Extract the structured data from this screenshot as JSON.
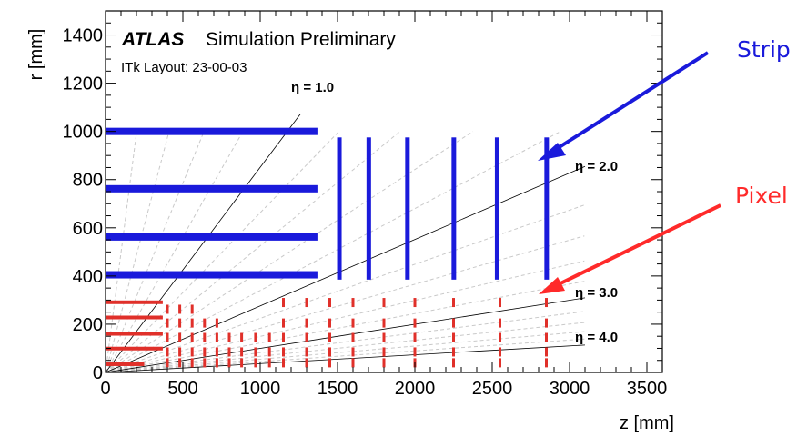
{
  "chart_data": {
    "type": "scatter",
    "title_bold": "ATLAS",
    "title": "Simulation Preliminary",
    "subtitle": "ITk Layout: 23-00-03",
    "xlabel": "z [mm]",
    "ylabel": "r [mm]",
    "xlim": [
      0,
      3600
    ],
    "ylim": [
      0,
      1500
    ],
    "xticks": [
      0,
      500,
      1000,
      1500,
      2000,
      2500,
      3000,
      3500
    ],
    "yticks": [
      0,
      200,
      400,
      600,
      800,
      1000,
      1200,
      1400
    ],
    "eta_lines": [
      {
        "label": "η = 1.0",
        "eta": 1.0,
        "z_end": 1260
      },
      {
        "label": "η = 2.0",
        "eta": 2.0,
        "z_end": 3100
      },
      {
        "label": "η = 3.0",
        "eta": 3.0,
        "z_end": 3100
      },
      {
        "label": "η = 4.0",
        "eta": 4.0,
        "z_end": 3100
      }
    ],
    "strip_barrel": {
      "color": "#1a1adb",
      "z_range": [
        0,
        1370
      ],
      "r": [
        405,
        562,
        762,
        1000
      ]
    },
    "strip_endcap": {
      "color": "#1a1adb",
      "z": [
        1512,
        1702,
        1952,
        2252,
        2532,
        2852
      ],
      "r_range": [
        385,
        975
      ]
    },
    "pixel_barrel": {
      "color": "#e0302a",
      "z_max": [
        250,
        370,
        370,
        370,
        370
      ],
      "r": [
        34,
        99,
        160,
        228,
        291
      ]
    },
    "pixel_rings": {
      "color": "#e0302a",
      "z": [
        400,
        480,
        560,
        640,
        720,
        800,
        880,
        970,
        1060,
        1150,
        1300,
        1450,
        1600,
        1800,
        2000,
        2250,
        2550,
        2850
      ],
      "r_center": [
        [
          40,
          85,
          145,
          205,
          262
        ],
        [
          40,
          85,
          145,
          205,
          262
        ],
        [
          40,
          85,
          145,
          205,
          262
        ],
        [
          40,
          85,
          145,
          205
        ],
        [
          40,
          85,
          145,
          205
        ],
        [
          40,
          85,
          145
        ],
        [
          40,
          85,
          145
        ],
        [
          40,
          85,
          145
        ],
        [
          40,
          85,
          145
        ],
        [
          40,
          85,
          145,
          205,
          290
        ],
        [
          40,
          85,
          145,
          205,
          290
        ],
        [
          40,
          85,
          145,
          205,
          290
        ],
        [
          40,
          85,
          145,
          205,
          290
        ],
        [
          40,
          85,
          145,
          205,
          290
        ],
        [
          40,
          85,
          145,
          205,
          290
        ],
        [
          40,
          85,
          145,
          205,
          290
        ],
        [
          40,
          85,
          145,
          205,
          290
        ],
        [
          40,
          85,
          145,
          205,
          290
        ]
      ]
    }
  },
  "callouts": {
    "strip": {
      "label": "Strip",
      "color": "#1a1adb"
    },
    "pixel": {
      "label": "Pixel",
      "color": "#ff2a2a"
    }
  }
}
